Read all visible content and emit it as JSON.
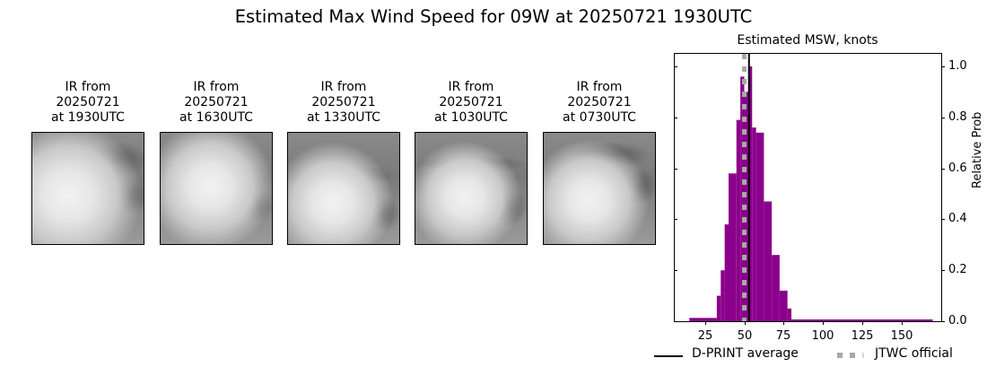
{
  "figure": {
    "title": "Estimated Max Wind Speed for 09W at 20250721 1930UTC"
  },
  "ir_panels": [
    {
      "line1": "IR from",
      "line2": "20250721",
      "line3": "at 1930UTC"
    },
    {
      "line1": "IR from",
      "line2": "20250721",
      "line3": "at 1630UTC"
    },
    {
      "line1": "IR from",
      "line2": "20250721",
      "line3": "at 1330UTC"
    },
    {
      "line1": "IR from",
      "line2": "20250721",
      "line3": "at 1030UTC"
    },
    {
      "line1": "IR from",
      "line2": "20250721",
      "line3": "at 0730UTC"
    }
  ],
  "colors": {
    "bar": "#8b008b",
    "dprint_line": "#000000",
    "jtwc_line": "#a9a9a9"
  },
  "chart_data": {
    "type": "bar",
    "title": "Estimated MSW, knots",
    "xlabel": "",
    "ylabel": "Relative Prob",
    "xlim": [
      5,
      175
    ],
    "ylim": [
      0,
      1.05
    ],
    "x_ticks": [
      "25",
      "50",
      "75",
      "100",
      "125",
      "150"
    ],
    "y_ticks": [
      "0.0",
      "0.2",
      "0.4",
      "0.6",
      "0.8",
      "1.0"
    ],
    "y_axis_position": "right",
    "grid": false,
    "bins": [
      {
        "x0": 15,
        "x1": 32.5,
        "value": 0.013
      },
      {
        "x0": 32.5,
        "x1": 35,
        "value": 0.1
      },
      {
        "x0": 35,
        "x1": 37.5,
        "value": 0.2
      },
      {
        "x0": 37.5,
        "x1": 40,
        "value": 0.38
      },
      {
        "x0": 40,
        "x1": 45,
        "value": 0.58
      },
      {
        "x0": 45,
        "x1": 47.5,
        "value": 0.79
      },
      {
        "x0": 47.5,
        "x1": 50,
        "value": 0.96
      },
      {
        "x0": 50,
        "x1": 52.5,
        "value": 0.9
      },
      {
        "x0": 52.5,
        "x1": 55,
        "value": 1.0
      },
      {
        "x0": 55,
        "x1": 57.5,
        "value": 0.76
      },
      {
        "x0": 57.5,
        "x1": 62.5,
        "value": 0.74
      },
      {
        "x0": 62.5,
        "x1": 67.5,
        "value": 0.47
      },
      {
        "x0": 67.5,
        "x1": 72.5,
        "value": 0.26
      },
      {
        "x0": 72.5,
        "x1": 77.5,
        "value": 0.12
      },
      {
        "x0": 77.5,
        "x1": 80,
        "value": 0.05
      },
      {
        "x0": 80,
        "x1": 170,
        "value": 0.005
      }
    ],
    "reference_lines": [
      {
        "name": "D-PRINT average",
        "x": 53,
        "style": "solid",
        "color": "#000000"
      },
      {
        "name": "JTWC official",
        "x": 50,
        "style": "dotted",
        "color": "#a9a9a9"
      }
    ],
    "legend": [
      "D-PRINT average",
      "JTWC official"
    ],
    "legend_position": "bottom"
  }
}
